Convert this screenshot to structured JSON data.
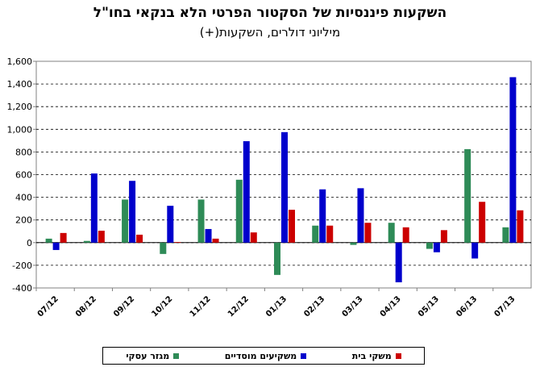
{
  "chart_data": {
    "type": "bar",
    "title": "השקעות פיננסיות של הסקטור הפרטי הלא בנקאי בחו\"ל",
    "subtitle": "מיליוני דולרים, השקעות(+)",
    "categories": [
      "07/12",
      "08/12",
      "09/12",
      "10/12",
      "11/12",
      "12/12",
      "01/13",
      "02/13",
      "03/13",
      "04/13",
      "05/13",
      "06/13",
      "07/13"
    ],
    "series": [
      {
        "name": "מגזר עסקי",
        "color": "#2e8b57",
        "values": [
          35,
          15,
          380,
          -100,
          380,
          555,
          -285,
          150,
          -20,
          175,
          -55,
          825,
          135
        ]
      },
      {
        "name": "משקיעים מוסדיים",
        "color": "#0000cc",
        "values": [
          -65,
          610,
          545,
          325,
          120,
          895,
          975,
          470,
          480,
          -350,
          -85,
          -140,
          1460
        ]
      },
      {
        "name": "משקי בית",
        "color": "#cc0000",
        "values": [
          85,
          105,
          70,
          5,
          35,
          90,
          290,
          150,
          175,
          135,
          110,
          360,
          285
        ]
      }
    ],
    "ylim": [
      -400,
      1600
    ],
    "yticks": [
      -400,
      -200,
      0,
      200,
      400,
      600,
      800,
      1000,
      1200,
      1400,
      1600
    ],
    "ytick_labels": [
      "-400",
      "-200",
      "0",
      "200",
      "400",
      "600",
      "800",
      "1,000",
      "1,200",
      "1,400",
      "1,600"
    ],
    "grid": true,
    "legend_position": "bottom"
  }
}
